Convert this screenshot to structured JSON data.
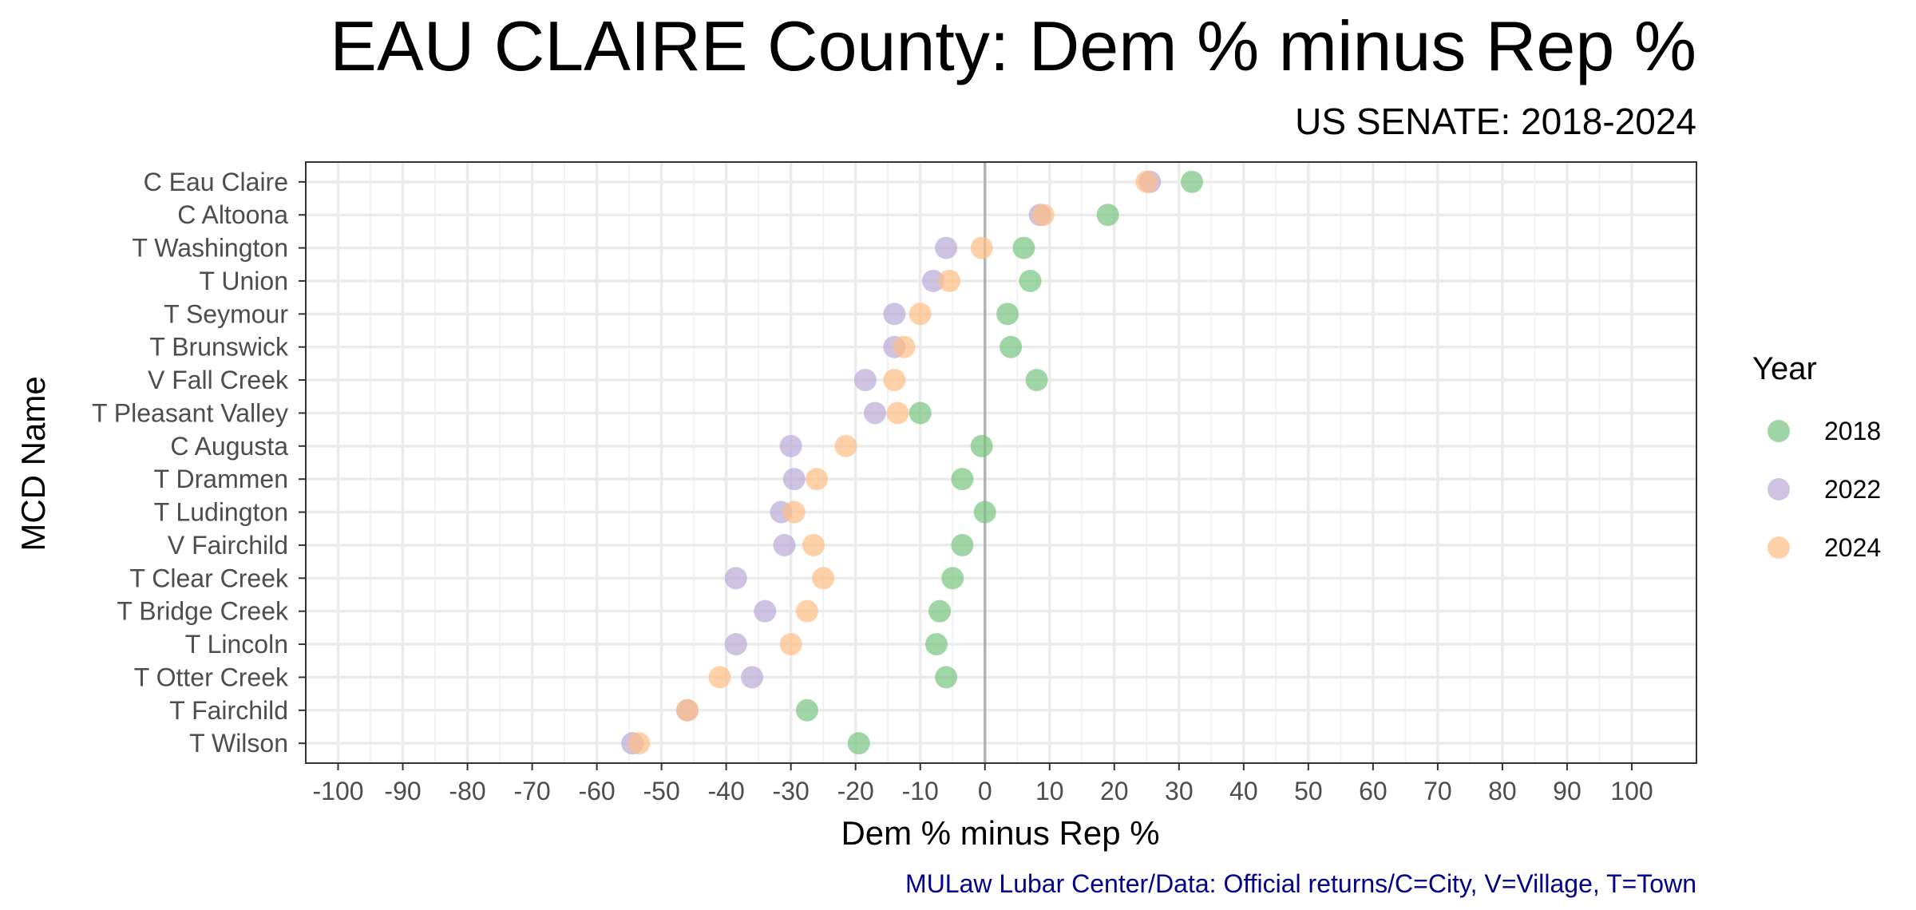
{
  "chart_data": {
    "type": "scatter",
    "title": "EAU CLAIRE County: Dem % minus Rep %",
    "subtitle": "US SENATE: 2018-2024",
    "xlabel": "Dem % minus Rep %",
    "ylabel": "MCD Name",
    "caption": "MULaw Lubar Center/Data: Official returns/C=City, V=Village, T=Town",
    "xlim": [
      -105,
      110
    ],
    "xticks": [
      -100,
      -90,
      -80,
      -70,
      -60,
      -50,
      -40,
      -30,
      -20,
      -10,
      0,
      10,
      20,
      30,
      40,
      50,
      60,
      70,
      80,
      90,
      100
    ],
    "grid": true,
    "legend": {
      "title": "Year",
      "position": "right"
    },
    "categories": [
      "C Eau Claire",
      "C Altoona",
      "T Washington",
      "T Union",
      "T Seymour",
      "T Brunswick",
      "V Fall Creek",
      "T Pleasant Valley",
      "C Augusta",
      "T Drammen",
      "T Ludington",
      "V Fairchild",
      "T Clear Creek",
      "T Bridge Creek",
      "T Lincoln",
      "T Otter Creek",
      "T Fairchild",
      "T Wilson"
    ],
    "series": [
      {
        "name": "2018",
        "color": "#77c47f",
        "values": [
          32,
          19,
          6,
          7,
          3.5,
          4,
          8,
          -10,
          -0.5,
          -3.5,
          0,
          -3.5,
          -5,
          -7,
          -7.5,
          -6,
          -27.5,
          -19.5
        ]
      },
      {
        "name": "2022",
        "color": "#b9a9d6",
        "values": [
          25.5,
          8.5,
          -6,
          -8,
          -14,
          -14,
          -18.5,
          -17,
          -30,
          -29.5,
          -31.5,
          -31,
          -38.5,
          -34,
          -38.5,
          -36,
          -46,
          -54.5
        ]
      },
      {
        "name": "2024",
        "color": "#ffbe85",
        "values": [
          25,
          9,
          -0.5,
          -5.5,
          -10,
          -12.5,
          -14,
          -13.5,
          -21.5,
          -26,
          -29.5,
          -26.5,
          -25,
          -27.5,
          -30,
          -41,
          -46,
          -53.5
        ]
      }
    ]
  }
}
